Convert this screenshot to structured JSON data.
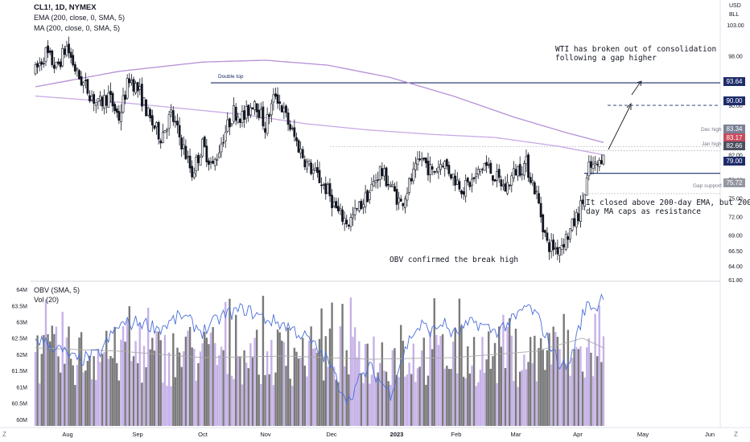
{
  "header": {
    "symbol": "CL1!, 1D, NYMEX",
    "ema_label": "EMA (200, close, 0, SMA, 5)",
    "ma_label": "MA (200, close, 0, SMA, 5)",
    "currency": "USD",
    "unit": "BLL"
  },
  "volume_panel": {
    "obv_label": "OBV (SMA, 5)",
    "vol_label": "Vol (20)"
  },
  "annotations": {
    "breakout": "WTI has broken out of consolidation\nfollowing a gap higher",
    "ema_note": "It closed above 200-day EMA, but 200-\nday MA caps as resistance",
    "obv_note": "OBV confirmed the break high",
    "double_top": "Double top",
    "dec_high": "Dec high",
    "jan_high": "Jan high",
    "gap_support": "Gap support"
  },
  "price_tags": [
    {
      "label": "93.64",
      "value": 93.64,
      "color": "#1e2c6b"
    },
    {
      "label": "90.00",
      "value": 90.0,
      "color": "#1e2c6b"
    },
    {
      "label": "83.34",
      "value": 83.34,
      "color": "#7a8097"
    },
    {
      "label": "83.17",
      "value": 83.17,
      "color": "#c94b5d"
    },
    {
      "label": "82.66",
      "value": 82.66,
      "color": "#4b5060"
    },
    {
      "label": "79.00",
      "value": 79.0,
      "color": "#1e2c6b"
    },
    {
      "label": "75.72",
      "value": 75.72,
      "color": "#9598a1"
    }
  ],
  "bottom_buttons": {
    "left": "Z",
    "right": "Z"
  },
  "colors": {
    "up": "#ffffff",
    "down": "#131722",
    "ema": "#c9a9e6",
    "ma": "#b591d6",
    "level": "#1e2c6b",
    "obv": "#4a6fd8",
    "vol_up": "#c6b2e8",
    "vol_down": "#7a7a7a",
    "vol_ma": "#aaaaaa"
  },
  "chart_data": [
    {
      "type": "candlestick",
      "title": "CL1!, 1D, NYMEX",
      "ylim": [
        61.8,
        106
      ],
      "y_ticks": [
        61.8,
        64.0,
        66.5,
        69.0,
        72.0,
        75.0,
        78.0,
        82.0,
        86.0,
        90.0,
        94.0,
        98.0,
        103.0
      ],
      "x_ticks": [
        "Aug",
        "Sep",
        "Oct",
        "Nov",
        "Dec",
        "2023",
        "Feb",
        "Mar",
        "Apr",
        "May",
        "Jun"
      ],
      "anchors": [
        {
          "x": 0,
          "y": 95.5
        },
        {
          "x": 5,
          "y": 98.5
        },
        {
          "x": 10,
          "y": 96.0
        },
        {
          "x": 15,
          "y": 99.5
        },
        {
          "x": 20,
          "y": 95.0
        },
        {
          "x": 25,
          "y": 92.5
        },
        {
          "x": 30,
          "y": 90.0
        },
        {
          "x": 35,
          "y": 91.5
        },
        {
          "x": 40,
          "y": 88.0
        },
        {
          "x": 45,
          "y": 94.5
        },
        {
          "x": 50,
          "y": 92.0
        },
        {
          "x": 55,
          "y": 87.5
        },
        {
          "x": 60,
          "y": 85.0
        },
        {
          "x": 65,
          "y": 88.5
        },
        {
          "x": 70,
          "y": 84.0
        },
        {
          "x": 75,
          "y": 79.0
        },
        {
          "x": 80,
          "y": 83.5
        },
        {
          "x": 85,
          "y": 80.0
        },
        {
          "x": 90,
          "y": 85.0
        },
        {
          "x": 95,
          "y": 89.0
        },
        {
          "x": 100,
          "y": 88.0
        },
        {
          "x": 105,
          "y": 91.0
        },
        {
          "x": 110,
          "y": 86.5
        },
        {
          "x": 115,
          "y": 92.0
        },
        {
          "x": 120,
          "y": 88.0
        },
        {
          "x": 125,
          "y": 84.0
        },
        {
          "x": 130,
          "y": 80.5
        },
        {
          "x": 135,
          "y": 78.5
        },
        {
          "x": 140,
          "y": 76.0
        },
        {
          "x": 145,
          "y": 72.5
        },
        {
          "x": 150,
          "y": 71.0
        },
        {
          "x": 155,
          "y": 73.5
        },
        {
          "x": 160,
          "y": 76.0
        },
        {
          "x": 165,
          "y": 79.5
        },
        {
          "x": 170,
          "y": 77.0
        },
        {
          "x": 175,
          "y": 74.0
        },
        {
          "x": 180,
          "y": 78.0
        },
        {
          "x": 185,
          "y": 81.5
        },
        {
          "x": 190,
          "y": 79.0
        },
        {
          "x": 195,
          "y": 81.0
        },
        {
          "x": 200,
          "y": 78.5
        },
        {
          "x": 205,
          "y": 76.5
        },
        {
          "x": 210,
          "y": 78.0
        },
        {
          "x": 215,
          "y": 80.5
        },
        {
          "x": 220,
          "y": 78.5
        },
        {
          "x": 225,
          "y": 76.5
        },
        {
          "x": 230,
          "y": 79.5
        },
        {
          "x": 235,
          "y": 80.5
        },
        {
          "x": 240,
          "y": 75.5
        },
        {
          "x": 245,
          "y": 67.5
        },
        {
          "x": 250,
          "y": 66.8
        },
        {
          "x": 255,
          "y": 69.0
        },
        {
          "x": 260,
          "y": 72.5
        },
        {
          "x": 263,
          "y": 75.5
        },
        {
          "x": 265,
          "y": 79.8
        },
        {
          "x": 268,
          "y": 80.0
        },
        {
          "x": 270,
          "y": 80.5
        },
        {
          "x": 272,
          "y": 83.0
        }
      ],
      "ema200_anchors": [
        {
          "x": 0,
          "y": 91.5
        },
        {
          "x": 40,
          "y": 90.5
        },
        {
          "x": 70,
          "y": 89.5
        },
        {
          "x": 100,
          "y": 88.5
        },
        {
          "x": 130,
          "y": 87.0
        },
        {
          "x": 160,
          "y": 86.0
        },
        {
          "x": 190,
          "y": 85.3
        },
        {
          "x": 220,
          "y": 84.8
        },
        {
          "x": 250,
          "y": 83.4
        },
        {
          "x": 272,
          "y": 82.0
        }
      ],
      "ma200_anchors": [
        {
          "x": 0,
          "y": 93.0
        },
        {
          "x": 40,
          "y": 95.5
        },
        {
          "x": 80,
          "y": 97.0
        },
        {
          "x": 110,
          "y": 97.3
        },
        {
          "x": 140,
          "y": 96.5
        },
        {
          "x": 170,
          "y": 94.5
        },
        {
          "x": 200,
          "y": 91.5
        },
        {
          "x": 230,
          "y": 88.0
        },
        {
          "x": 255,
          "y": 85.5
        },
        {
          "x": 272,
          "y": 84.0
        }
      ],
      "levels": [
        {
          "value": 93.64,
          "style": "solid"
        },
        {
          "value": 90.0,
          "style": "dashed"
        },
        {
          "value": 83.34,
          "style": "dotted"
        },
        {
          "value": 82.66,
          "style": "dotted"
        },
        {
          "value": 79.0,
          "style": "solid"
        },
        {
          "value": 75.72,
          "style": "dotted"
        }
      ]
    },
    {
      "type": "bar",
      "title": "OBV (SMA, 5) / Vol (20)",
      "ylim": [
        59.8,
        64.1
      ],
      "y_ticks": [
        "64M",
        "63.5M",
        "63M",
        "62.5M",
        "62M",
        "61.5M",
        "61M",
        "60.5M",
        "60M"
      ],
      "obv_anchors": [
        {
          "x": 0,
          "y": 62.5
        },
        {
          "x": 10,
          "y": 62.2
        },
        {
          "x": 20,
          "y": 61.8
        },
        {
          "x": 30,
          "y": 62.0
        },
        {
          "x": 40,
          "y": 62.9
        },
        {
          "x": 50,
          "y": 63.0
        },
        {
          "x": 60,
          "y": 62.8
        },
        {
          "x": 70,
          "y": 63.2
        },
        {
          "x": 80,
          "y": 62.7
        },
        {
          "x": 90,
          "y": 63.2
        },
        {
          "x": 100,
          "y": 63.4
        },
        {
          "x": 110,
          "y": 63.1
        },
        {
          "x": 120,
          "y": 62.9
        },
        {
          "x": 130,
          "y": 62.5
        },
        {
          "x": 140,
          "y": 61.8
        },
        {
          "x": 145,
          "y": 61.1
        },
        {
          "x": 150,
          "y": 60.6
        },
        {
          "x": 155,
          "y": 61.2
        },
        {
          "x": 160,
          "y": 61.6
        },
        {
          "x": 165,
          "y": 61.2
        },
        {
          "x": 170,
          "y": 60.8
        },
        {
          "x": 175,
          "y": 61.8
        },
        {
          "x": 180,
          "y": 62.6
        },
        {
          "x": 185,
          "y": 62.9
        },
        {
          "x": 190,
          "y": 62.7
        },
        {
          "x": 195,
          "y": 63.0
        },
        {
          "x": 200,
          "y": 62.6
        },
        {
          "x": 210,
          "y": 63.0
        },
        {
          "x": 220,
          "y": 62.7
        },
        {
          "x": 230,
          "y": 63.1
        },
        {
          "x": 235,
          "y": 63.5
        },
        {
          "x": 240,
          "y": 63.2
        },
        {
          "x": 245,
          "y": 62.5
        },
        {
          "x": 250,
          "y": 61.8
        },
        {
          "x": 255,
          "y": 61.6
        },
        {
          "x": 258,
          "y": 62.3
        },
        {
          "x": 262,
          "y": 63.2
        },
        {
          "x": 265,
          "y": 63.6
        },
        {
          "x": 268,
          "y": 63.4
        },
        {
          "x": 270,
          "y": 63.6
        },
        {
          "x": 272,
          "y": 63.9
        }
      ],
      "vol_ma_anchors": [
        {
          "x": 0,
          "y": 62.2
        },
        {
          "x": 40,
          "y": 62.1
        },
        {
          "x": 80,
          "y": 61.9
        },
        {
          "x": 120,
          "y": 61.95
        },
        {
          "x": 160,
          "y": 61.85
        },
        {
          "x": 200,
          "y": 61.9
        },
        {
          "x": 240,
          "y": 62.1
        },
        {
          "x": 262,
          "y": 62.5
        },
        {
          "x": 272,
          "y": 62.2
        }
      ]
    }
  ]
}
